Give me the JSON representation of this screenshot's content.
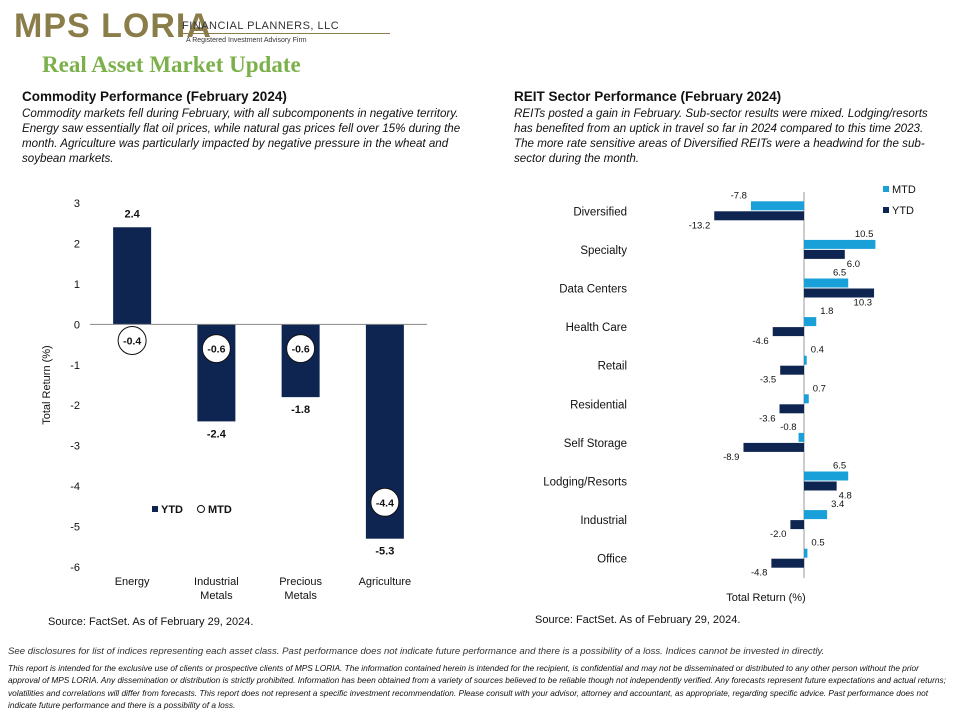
{
  "logo": {
    "name": "MPS LORIA",
    "tagline": "FINANCIAL PLANNERS, LLC",
    "subtagline": "A Registered Investment Advisory Firm"
  },
  "page_title": "Real Asset Market Update",
  "left": {
    "title": "Commodity  Performance (February 2024)",
    "description": "Commodity markets fell during February, with all subcomponents in negative territory. Energy saw essentially flat oil prices, while natural gas prices fell over 15% during the month. Agriculture was particularly impacted by negative pressure in the wheat and soybean markets.",
    "source": "Source: FactSet. As of February 29, 2024."
  },
  "right": {
    "title": "REIT Sector Performance (February 2024)",
    "description": "REITs posted a gain in February. Sub-sector results were mixed. Lodging/resorts has benefited from an uptick in travel so far in 2024 compared to this time 2023. The more rate sensitive areas of Diversified REITs were a headwind  for the sub-sector during the month.",
    "source": "Source: FactSet. As of February 29, 2024."
  },
  "disclaimer_short": "See disclosures for list of indices representing each asset class. Past performance does not indicate future performance and there is a possibility of a loss. Indices cannot be invested in directly.",
  "disclaimer_long": "This report is intended for the exclusive use of clients or prospective clients of MPS LORIA. The information contained herein is intended for the recipient, is confidential and may not be disseminated or distributed to any other person without the prior approval of MPS LORIA. Any dissemination or distribution is strictly prohibited. Information has been obtained from a variety of sources believed to be reliable though not independently verified. Any forecasts represent future expectations and actual returns; volatilities and correlations will differ from forecasts. This report does not represent a specific investment recommendation. Please consult with your advisor, attorney and accountant, as appropriate, regarding specific advice. Past performance does not indicate future performance and there is a possibility of a loss.",
  "colors": {
    "ytd": "#0e2552",
    "mtd": "#1aa0d8",
    "title_green": "#7bb04a",
    "logo_gold": "#8b7d4a"
  },
  "chart_data": [
    {
      "type": "bar",
      "categories": [
        "Energy",
        "Industrial Metals",
        "Precious Metals",
        "Agriculture"
      ],
      "category_lines": [
        [
          "Energy"
        ],
        [
          "Industrial",
          "Metals"
        ],
        [
          "Precious",
          "Metals"
        ],
        [
          "Agriculture"
        ]
      ],
      "series": [
        {
          "name": "YTD",
          "values": [
            2.4,
            -2.4,
            -1.8,
            -5.3
          ],
          "labels": [
            "2.4",
            "-2.4",
            "-1.8",
            "-5.3"
          ]
        },
        {
          "name": "MTD",
          "values": [
            -0.4,
            -0.6,
            -0.6,
            -4.4
          ],
          "labels": [
            "-0.4",
            "-0.6",
            "-0.6",
            "-4.4"
          ]
        }
      ],
      "ylabel": "Total Return (%)",
      "ylim": [
        -6,
        3
      ],
      "yticks": [
        "3",
        "2",
        "1",
        "0",
        "-1",
        "-2",
        "-3",
        "-4",
        "-5",
        "-6"
      ],
      "legend": [
        "YTD",
        "MTD"
      ],
      "legend_position": "bottom-left"
    },
    {
      "type": "bar",
      "orientation": "horizontal",
      "categories": [
        "Diversified",
        "Specialty",
        "Data Centers",
        "Health Care",
        "Retail",
        "Residential",
        "Self Storage",
        "Lodging/Resorts",
        "Industrial",
        "Office"
      ],
      "series": [
        {
          "name": "MTD",
          "values": [
            -7.8,
            10.5,
            6.5,
            1.8,
            0.4,
            0.7,
            -0.8,
            6.5,
            3.4,
            0.5
          ],
          "labels": [
            "-7.8",
            "10.5",
            "6.5",
            "1.8",
            "0.4",
            "0.7",
            "-0.8",
            "6.5",
            "3.4",
            "0.5"
          ]
        },
        {
          "name": "YTD",
          "values": [
            -13.2,
            6.0,
            10.3,
            -4.6,
            -3.5,
            -3.6,
            -8.9,
            4.8,
            -2.0,
            -4.8
          ],
          "labels": [
            "-13.2",
            "6.0",
            "10.3",
            "-4.6",
            "-3.5",
            "-3.6",
            "-8.9",
            "4.8",
            "-2.0",
            "-4.8"
          ]
        }
      ],
      "xlabel": "Total Return (%)",
      "legend": [
        "MTD",
        "YTD"
      ],
      "legend_position": "top-right"
    }
  ]
}
